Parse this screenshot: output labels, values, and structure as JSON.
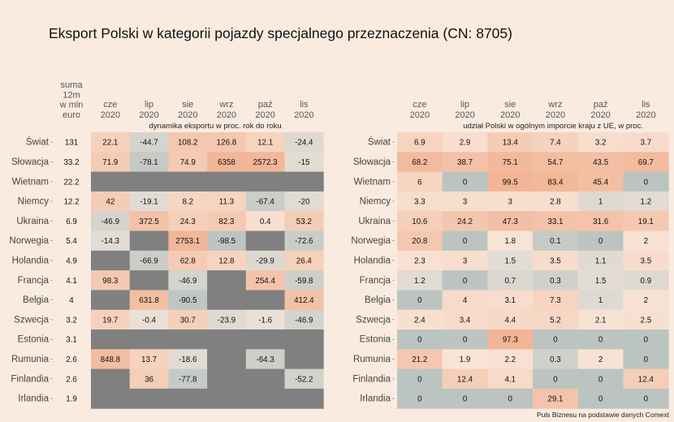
{
  "title": "Eksport Polski w kategorii pojazdy specjalnego przeznaczenia (CN: 8705)",
  "source": "Puls Biznesu na podstawie danych Comext",
  "colors": {
    "na": "#808080",
    "low": "#bcc4c1",
    "mid": "#f9eade",
    "high": "#f2b697",
    "background": "#faebe0"
  },
  "chart_data": [
    {
      "type": "heatmap",
      "title": "dynamika eksportu w proc. rok do roku",
      "sum_header": [
        "suma",
        "12m",
        "w mln",
        "euro"
      ],
      "columns": [
        [
          "cze",
          "2020"
        ],
        [
          "lip",
          "2020"
        ],
        [
          "sie",
          "2020"
        ],
        [
          "wrz",
          "2020"
        ],
        [
          "paź",
          "2020"
        ],
        [
          "lis",
          "2020"
        ]
      ],
      "rows": [
        "Świat",
        "Słowacja",
        "Wietnam",
        "Niemcy",
        "Ukraina",
        "Norwegia",
        "Holandia",
        "Francja",
        "Belgia",
        "Szwecja",
        "Estonia",
        "Rumunia",
        "Finlandia",
        "Irlandia"
      ],
      "sum_values": [
        "131",
        "33.2",
        "22.2",
        "12.2",
        "6.9",
        "5.4",
        "4.9",
        "4.1",
        "4",
        "3.2",
        "3.1",
        "2.6",
        "2.6",
        "1.9"
      ],
      "values": [
        [
          22.1,
          -44.7,
          108.2,
          126.8,
          12.1,
          -24.4
        ],
        [
          71.9,
          -78.1,
          74.9,
          6358,
          2572.3,
          -15
        ],
        [
          null,
          null,
          null,
          null,
          null,
          null
        ],
        [
          42,
          -19.1,
          8.2,
          11.3,
          -67.4,
          -20
        ],
        [
          -46.9,
          372.5,
          24.3,
          82.3,
          0.4,
          53.2
        ],
        [
          -14.3,
          null,
          2753.1,
          -98.5,
          null,
          -72.6
        ],
        [
          null,
          -66.9,
          62.8,
          12.8,
          -29.9,
          26.4
        ],
        [
          98.3,
          null,
          -46.9,
          null,
          254.4,
          -59.8
        ],
        [
          null,
          631.8,
          -90.5,
          null,
          null,
          412.4
        ],
        [
          19.7,
          -0.4,
          30.7,
          -23.9,
          -1.6,
          -46.9
        ],
        [
          null,
          null,
          null,
          null,
          null,
          null
        ],
        [
          848.8,
          13.7,
          -18.6,
          null,
          -64.3,
          null
        ],
        [
          null,
          36,
          -77.8,
          null,
          null,
          -52.2
        ],
        [
          null,
          null,
          null,
          null,
          null,
          null
        ]
      ]
    },
    {
      "type": "heatmap",
      "title": "udział Polski w ogólnym imporcie kraju z UE, w proc.",
      "columns": [
        [
          "cze",
          "2020"
        ],
        [
          "lip",
          "2020"
        ],
        [
          "sie",
          "2020"
        ],
        [
          "wrz",
          "2020"
        ],
        [
          "paź",
          "2020"
        ],
        [
          "lis",
          "2020"
        ]
      ],
      "rows": [
        "Świat",
        "Słowacja",
        "Wietnam",
        "Niemcy",
        "Ukraina",
        "Norwegia",
        "Holandia",
        "Francja",
        "Belgia",
        "Szwecja",
        "Estonia",
        "Rumunia",
        "Finlandia",
        "Irlandia"
      ],
      "values": [
        [
          6.9,
          2.9,
          13.4,
          7.4,
          3.2,
          3.7
        ],
        [
          68.2,
          38.7,
          75.1,
          54.7,
          43.5,
          69.7
        ],
        [
          6,
          0,
          99.5,
          83.4,
          45.4,
          0
        ],
        [
          3.3,
          3,
          3,
          2.8,
          1,
          1.2
        ],
        [
          10.6,
          24.2,
          47.3,
          33.1,
          31.6,
          19.1
        ],
        [
          20.8,
          0,
          1.8,
          0.1,
          0,
          2
        ],
        [
          2.3,
          3,
          1.5,
          3.5,
          1.1,
          3.5
        ],
        [
          1.2,
          0,
          0.7,
          0.3,
          1.5,
          0.9
        ],
        [
          0,
          4,
          3.1,
          7.3,
          1,
          2
        ],
        [
          2.4,
          3.4,
          4.4,
          5.2,
          2.1,
          2.5
        ],
        [
          0,
          0,
          97.3,
          0,
          0,
          0
        ],
        [
          21.2,
          1.9,
          2.2,
          0.3,
          2,
          0
        ],
        [
          0,
          12.4,
          4.1,
          0,
          0,
          12.4
        ],
        [
          0,
          0,
          0,
          29.1,
          0,
          0
        ]
      ]
    }
  ]
}
